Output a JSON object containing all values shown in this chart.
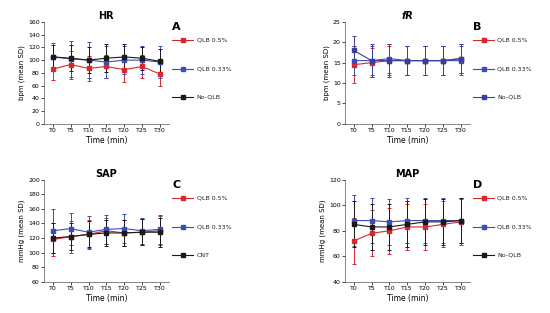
{
  "time_labels": [
    "T0",
    "T5",
    "T10",
    "T15",
    "T20",
    "T25",
    "T30"
  ],
  "time_x": [
    0,
    1,
    2,
    3,
    4,
    5,
    6
  ],
  "HR": {
    "title": "HR",
    "title_style": "normal",
    "ylabel": "bpm (mean SD)",
    "ylim": [
      0,
      160
    ],
    "yticks": [
      0,
      20,
      40,
      60,
      80,
      100,
      120,
      140,
      160
    ],
    "panel_label": "A",
    "legend_labels": [
      "QLB 0.5%",
      "QLB 0.33%",
      "No-QLB"
    ],
    "colors": [
      "#d9272e",
      "#3d4db7",
      "#1a1a1a"
    ],
    "line_styles": [
      "-",
      "-",
      "-"
    ],
    "means": [
      [
        86,
        93,
        87,
        90,
        85,
        90,
        78
      ],
      [
        105,
        102,
        100,
        97,
        100,
        100,
        97
      ],
      [
        105,
        103,
        100,
        103,
        105,
        103,
        98
      ]
    ],
    "sds": [
      [
        18,
        22,
        20,
        18,
        20,
        18,
        18
      ],
      [
        22,
        28,
        28,
        25,
        22,
        22,
        25
      ],
      [
        18,
        20,
        20,
        22,
        20,
        18,
        20
      ]
    ]
  },
  "fR": {
    "title": "fR",
    "title_style": "italic",
    "ylabel": "bpm (mean SD)",
    "ylim": [
      0,
      25
    ],
    "yticks": [
      0,
      5,
      10,
      15,
      20,
      25
    ],
    "panel_label": "B",
    "legend_labels": [
      "QLB 0.5%",
      "QLB 0.33%",
      "No-QLB"
    ],
    "colors": [
      "#d9272e",
      "#3d4db7",
      "#3a3f9e"
    ],
    "line_styles": [
      "-",
      "-",
      "-"
    ],
    "means": [
      [
        14.5,
        15.0,
        15.5,
        15.5,
        15.5,
        15.5,
        16.0
      ],
      [
        15.5,
        15.5,
        16.0,
        15.5,
        15.5,
        15.5,
        15.5
      ],
      [
        18.0,
        15.5,
        15.5,
        15.5,
        15.5,
        15.5,
        16.0
      ]
    ],
    "sds": [
      [
        4.5,
        3.5,
        3.5,
        3.5,
        3.5,
        3.5,
        3.5
      ],
      [
        3.5,
        3.5,
        3.5,
        3.5,
        3.5,
        3.5,
        3.5
      ],
      [
        3.5,
        4.0,
        4.0,
        3.5,
        3.5,
        3.5,
        3.5
      ]
    ]
  },
  "SAP": {
    "title": "SAP",
    "title_style": "normal",
    "ylabel": "mmHg (mean SD)",
    "ylim": [
      60,
      200
    ],
    "yticks": [
      60,
      80,
      100,
      120,
      140,
      160,
      180,
      200
    ],
    "panel_label": "C",
    "legend_labels": [
      "QLB 0.5%",
      "QLB 0.33%",
      "CNT"
    ],
    "colors": [
      "#d9272e",
      "#3d4db7",
      "#1a1a1a"
    ],
    "line_styles": [
      "-",
      "-",
      "-"
    ],
    "means": [
      [
        118,
        122,
        125,
        130,
        127,
        128,
        130
      ],
      [
        130,
        133,
        128,
        132,
        133,
        130,
        132
      ],
      [
        120,
        122,
        125,
        127,
        127,
        128,
        128
      ]
    ],
    "sds": [
      [
        22,
        22,
        20,
        18,
        18,
        18,
        20
      ],
      [
        30,
        22,
        22,
        20,
        20,
        18,
        20
      ],
      [
        20,
        18,
        18,
        18,
        18,
        18,
        20
      ]
    ]
  },
  "MAP": {
    "title": "MAP",
    "title_style": "normal",
    "ylabel": "mmHg (mean SD)",
    "ylim": [
      40,
      120
    ],
    "yticks": [
      40,
      60,
      80,
      100,
      120
    ],
    "panel_label": "D",
    "legend_labels": [
      "QLB 0.5%",
      "QLB 0.33%",
      "No-QLB"
    ],
    "colors": [
      "#d9272e",
      "#3d4db7",
      "#1a1a1a"
    ],
    "line_styles": [
      "-",
      "-",
      "-"
    ],
    "means": [
      [
        72,
        78,
        80,
        83,
        83,
        85,
        87
      ],
      [
        88,
        88,
        87,
        88,
        88,
        88,
        88
      ],
      [
        85,
        83,
        83,
        85,
        87,
        87,
        88
      ]
    ],
    "sds": [
      [
        18,
        18,
        18,
        18,
        18,
        18,
        18
      ],
      [
        20,
        18,
        18,
        18,
        18,
        18,
        18
      ],
      [
        18,
        18,
        18,
        18,
        18,
        18,
        18
      ]
    ]
  },
  "background": "#ffffff",
  "panel_bg": "#ffffff"
}
